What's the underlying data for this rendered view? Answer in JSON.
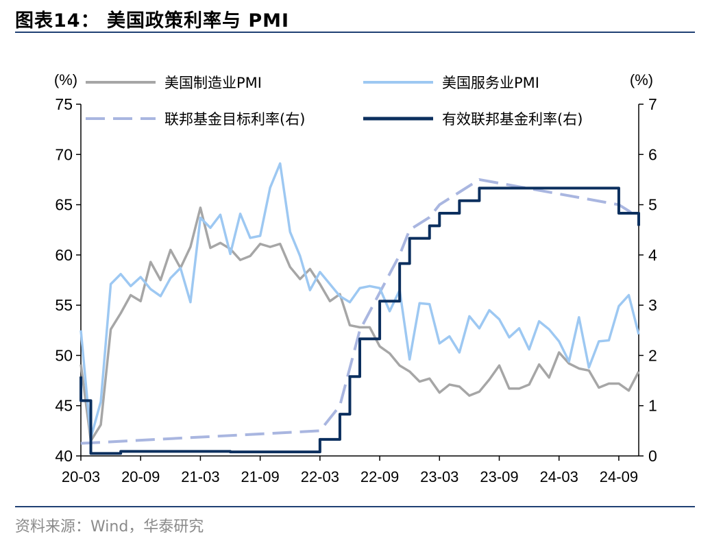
{
  "title": "图表14：   美国政策利率与 PMI",
  "source": "资料来源：Wind，华泰研究",
  "chart_data": {
    "type": "line",
    "y_left_unit": "(%)",
    "y_right_unit": "(%)",
    "ylim_left": [
      40,
      75
    ],
    "ylim_right": [
      0,
      7
    ],
    "yticks_left": [
      40,
      45,
      50,
      55,
      60,
      65,
      70,
      75
    ],
    "yticks_right": [
      0,
      1,
      2,
      3,
      4,
      5,
      6,
      7
    ],
    "x_range": [
      "2020-03",
      "2024-11"
    ],
    "x_ticks": [
      "20-03",
      "20-09",
      "21-03",
      "21-09",
      "22-03",
      "22-09",
      "23-03",
      "23-09",
      "24-03",
      "24-09"
    ],
    "legend_placement": "top",
    "series": [
      {
        "name": "美国制造业PMI",
        "axis": "left",
        "style": "solid",
        "color": "#a6a6a6",
        "x": [
          "2020-03",
          "2020-04",
          "2020-05",
          "2020-06",
          "2020-07",
          "2020-08",
          "2020-09",
          "2020-10",
          "2020-11",
          "2020-12",
          "2021-01",
          "2021-02",
          "2021-03",
          "2021-04",
          "2021-05",
          "2021-06",
          "2021-07",
          "2021-08",
          "2021-09",
          "2021-10",
          "2021-11",
          "2021-12",
          "2022-01",
          "2022-02",
          "2022-03",
          "2022-04",
          "2022-05",
          "2022-06",
          "2022-07",
          "2022-08",
          "2022-09",
          "2022-10",
          "2022-11",
          "2022-12",
          "2023-01",
          "2023-02",
          "2023-03",
          "2023-04",
          "2023-05",
          "2023-06",
          "2023-07",
          "2023-08",
          "2023-09",
          "2023-10",
          "2023-11",
          "2023-12",
          "2024-01",
          "2024-02",
          "2024-03",
          "2024-04",
          "2024-05",
          "2024-06",
          "2024-07",
          "2024-08",
          "2024-09",
          "2024-10",
          "2024-11"
        ],
        "values": [
          49.1,
          41.5,
          43.1,
          52.6,
          54.2,
          56.0,
          55.4,
          59.3,
          57.5,
          60.5,
          58.7,
          60.8,
          64.7,
          60.7,
          61.2,
          60.6,
          59.5,
          59.9,
          61.1,
          60.8,
          61.1,
          58.8,
          57.6,
          58.6,
          57.1,
          55.4,
          56.1,
          53.0,
          52.8,
          52.8,
          50.9,
          50.2,
          49.0,
          48.4,
          47.4,
          47.7,
          46.3,
          47.1,
          46.9,
          46.0,
          46.4,
          47.6,
          49.0,
          46.7,
          46.7,
          47.1,
          49.1,
          47.8,
          50.3,
          49.2,
          48.7,
          48.5,
          46.8,
          47.2,
          47.2,
          46.5,
          48.4
        ]
      },
      {
        "name": "美国服务业PMI",
        "axis": "left",
        "style": "solid",
        "color": "#9dc8f2",
        "x": [
          "2020-03",
          "2020-04",
          "2020-05",
          "2020-06",
          "2020-07",
          "2020-08",
          "2020-09",
          "2020-10",
          "2020-11",
          "2020-12",
          "2021-01",
          "2021-02",
          "2021-03",
          "2021-04",
          "2021-05",
          "2021-06",
          "2021-07",
          "2021-08",
          "2021-09",
          "2021-10",
          "2021-11",
          "2021-12",
          "2022-01",
          "2022-02",
          "2022-03",
          "2022-04",
          "2022-05",
          "2022-06",
          "2022-07",
          "2022-08",
          "2022-09",
          "2022-10",
          "2022-11",
          "2022-12",
          "2023-01",
          "2023-02",
          "2023-03",
          "2023-04",
          "2023-05",
          "2023-06",
          "2023-07",
          "2023-08",
          "2023-09",
          "2023-10",
          "2023-11",
          "2023-12",
          "2024-01",
          "2024-02",
          "2024-03",
          "2024-04",
          "2024-05",
          "2024-06",
          "2024-07",
          "2024-08",
          "2024-09",
          "2024-10",
          "2024-11"
        ],
        "values": [
          52.5,
          41.8,
          45.4,
          57.1,
          58.1,
          56.9,
          57.8,
          56.6,
          55.9,
          57.7,
          58.7,
          55.3,
          63.7,
          62.7,
          64.0,
          60.1,
          64.1,
          61.7,
          61.9,
          66.7,
          69.1,
          62.3,
          59.9,
          56.5,
          58.3,
          57.1,
          55.9,
          55.3,
          56.7,
          56.9,
          56.7,
          54.4,
          56.5,
          49.6,
          55.2,
          55.1,
          51.2,
          51.9,
          50.3,
          53.9,
          52.7,
          54.5,
          53.6,
          51.8,
          52.7,
          50.6,
          53.4,
          52.6,
          51.4,
          49.4,
          53.8,
          48.8,
          51.4,
          51.5,
          54.9,
          56.0,
          52.1
        ]
      },
      {
        "name": "联邦基金目标利率(右)",
        "axis": "right",
        "style": "dashed",
        "color": "#a9b6e0",
        "x": [
          "2020-03",
          "2022-03",
          "2022-05",
          "2022-06",
          "2022-07",
          "2022-09",
          "2022-11",
          "2022-12",
          "2023-02",
          "2023-03",
          "2023-05",
          "2023-07",
          "2024-09",
          "2024-11"
        ],
        "values": [
          0.25,
          0.5,
          1.0,
          1.75,
          2.5,
          3.25,
          4.0,
          4.5,
          4.75,
          5.0,
          5.25,
          5.5,
          5.0,
          4.75
        ]
      },
      {
        "name": "有效联邦基金利率(右)",
        "axis": "right",
        "style": "step",
        "color": "#0b2f5e",
        "x": [
          "2020-03",
          "2020-03",
          "2020-04",
          "2020-07",
          "2021-06",
          "2022-03",
          "2022-05",
          "2022-06",
          "2022-07",
          "2022-09",
          "2022-11",
          "2022-12",
          "2023-02",
          "2023-03",
          "2023-05",
          "2023-07",
          "2024-09",
          "2024-11"
        ],
        "values": [
          1.58,
          1.1,
          0.05,
          0.09,
          0.08,
          0.33,
          0.83,
          1.58,
          2.33,
          3.08,
          3.83,
          4.33,
          4.58,
          4.83,
          5.08,
          5.33,
          4.83,
          4.58
        ]
      }
    ]
  }
}
